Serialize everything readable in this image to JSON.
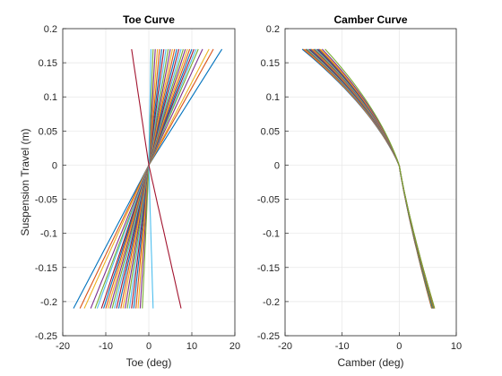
{
  "chart_data": [
    {
      "type": "line",
      "title": "Toe Curve",
      "xlabel": "Toe (deg)",
      "ylabel": "Suspension Travel (m)",
      "xlim": [
        -20,
        20
      ],
      "ylim": [
        -0.25,
        0.2
      ],
      "xticks": [
        "-20",
        "-10",
        "0",
        "10",
        "20"
      ],
      "yticks": [
        "-0.25",
        "-0.2",
        "-0.15",
        "-0.1",
        "-0.05",
        "0",
        "0.05",
        "0.1",
        "0.15",
        "0.2"
      ],
      "grid": true,
      "y_range": [
        -0.21,
        0.17
      ],
      "series": [
        {
          "top_x": 17.0,
          "bottom_x": -17.5,
          "curv": 0.0
        },
        {
          "top_x": 15.0,
          "bottom_x": -16.0,
          "curv": 0.0
        },
        {
          "top_x": 14.0,
          "bottom_x": -15.0,
          "curv": 0.0
        },
        {
          "top_x": 12.5,
          "bottom_x": -13.5,
          "curv": 0.0
        },
        {
          "top_x": 11.5,
          "bottom_x": -12.5,
          "curv": 0.0
        },
        {
          "top_x": 11.0,
          "bottom_x": -12.0,
          "curv": 0.0
        },
        {
          "top_x": 10.5,
          "bottom_x": -11.0,
          "curv": 0.0
        },
        {
          "top_x": 10.0,
          "bottom_x": -10.5,
          "curv": 0.0
        },
        {
          "top_x": 9.5,
          "bottom_x": -10.0,
          "curv": 0.0
        },
        {
          "top_x": 9.0,
          "bottom_x": -9.5,
          "curv": 0.0
        },
        {
          "top_x": 8.5,
          "bottom_x": -9.0,
          "curv": 0.0
        },
        {
          "top_x": 8.0,
          "bottom_x": -8.5,
          "curv": 0.0
        },
        {
          "top_x": 7.5,
          "bottom_x": -8.0,
          "curv": 0.0
        },
        {
          "top_x": 7.0,
          "bottom_x": -7.5,
          "curv": 0.0
        },
        {
          "top_x": 6.5,
          "bottom_x": -7.0,
          "curv": 0.0
        },
        {
          "top_x": 6.0,
          "bottom_x": -6.5,
          "curv": 0.0
        },
        {
          "top_x": 5.5,
          "bottom_x": -6.0,
          "curv": 0.0
        },
        {
          "top_x": 5.0,
          "bottom_x": -5.5,
          "curv": 0.0
        },
        {
          "top_x": 4.5,
          "bottom_x": -5.0,
          "curv": 0.0
        },
        {
          "top_x": 4.0,
          "bottom_x": -4.5,
          "curv": 0.0
        },
        {
          "top_x": 3.5,
          "bottom_x": -4.0,
          "curv": 0.0
        },
        {
          "top_x": 3.0,
          "bottom_x": -3.5,
          "curv": 0.0
        },
        {
          "top_x": 2.5,
          "bottom_x": -3.0,
          "curv": 0.0
        },
        {
          "top_x": 2.0,
          "bottom_x": -2.5,
          "curv": 0.0
        },
        {
          "top_x": 1.5,
          "bottom_x": -2.0,
          "curv": 0.0
        },
        {
          "top_x": 1.0,
          "bottom_x": -1.5,
          "curv": 0.0
        },
        {
          "top_x": 0.5,
          "bottom_x": 1.0,
          "curv": 0.0
        },
        {
          "top_x": -4.0,
          "bottom_x": 7.5,
          "curv": 0.0
        }
      ]
    },
    {
      "type": "line",
      "title": "Camber Curve",
      "xlabel": "Camber (deg)",
      "xlim": [
        -20,
        10
      ],
      "ylim": [
        -0.25,
        0.2
      ],
      "xticks": [
        "-20",
        "-10",
        "0",
        "10"
      ],
      "yticks": [
        "-0.25",
        "-0.2",
        "-0.15",
        "-0.1",
        "-0.05",
        "0",
        "0.05",
        "0.1",
        "0.15",
        "0.2"
      ],
      "grid": true,
      "y_range": [
        -0.21,
        0.17
      ],
      "series": [
        {
          "top_x": -17.0,
          "bottom_x": 5.7
        },
        {
          "top_x": -16.8,
          "bottom_x": 5.7
        },
        {
          "top_x": -16.6,
          "bottom_x": 5.8
        },
        {
          "top_x": -16.4,
          "bottom_x": 5.8
        },
        {
          "top_x": -16.2,
          "bottom_x": 5.8
        },
        {
          "top_x": -16.0,
          "bottom_x": 5.9
        },
        {
          "top_x": -15.8,
          "bottom_x": 5.9
        },
        {
          "top_x": -15.6,
          "bottom_x": 5.9
        },
        {
          "top_x": -15.4,
          "bottom_x": 6.0
        },
        {
          "top_x": -15.2,
          "bottom_x": 6.0
        },
        {
          "top_x": -15.0,
          "bottom_x": 6.0
        },
        {
          "top_x": -14.8,
          "bottom_x": 6.0
        },
        {
          "top_x": -14.6,
          "bottom_x": 6.1
        },
        {
          "top_x": -14.4,
          "bottom_x": 6.1
        },
        {
          "top_x": -14.2,
          "bottom_x": 6.1
        },
        {
          "top_x": -14.0,
          "bottom_x": 6.1
        },
        {
          "top_x": -13.8,
          "bottom_x": 6.2
        },
        {
          "top_x": -13.5,
          "bottom_x": 6.2
        },
        {
          "top_x": -13.0,
          "bottom_x": 6.2
        }
      ]
    }
  ],
  "colors": [
    "#0072BD",
    "#D95319",
    "#EDB120",
    "#7E2F8E",
    "#77AC30",
    "#4DBEEE",
    "#A2142F"
  ]
}
